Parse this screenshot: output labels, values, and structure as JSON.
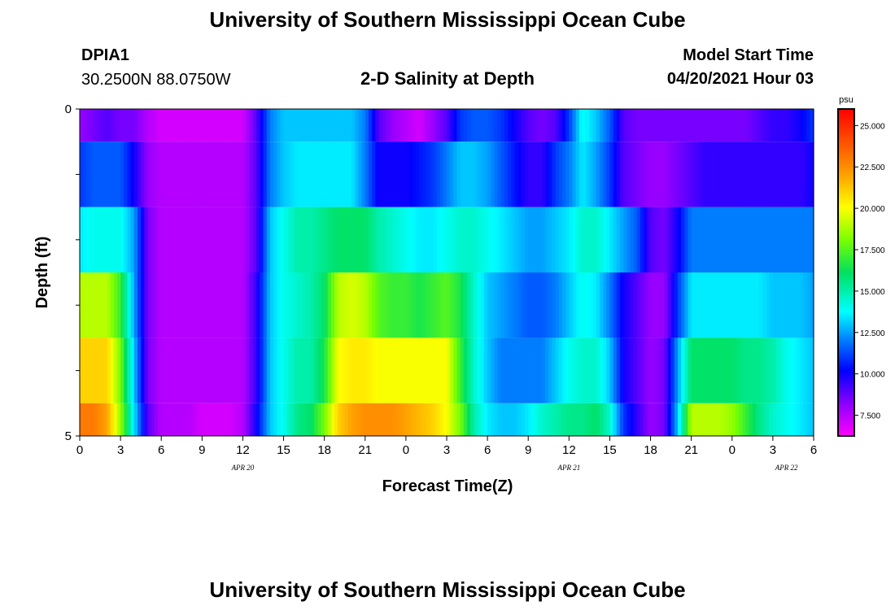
{
  "header": {
    "title": "University of Southern Mississippi Ocean Cube",
    "station": "DPIA1",
    "coords": "30.2500N  88.0750W",
    "subtitle": "2-D Salinity at Depth",
    "model_label": "Model Start Time",
    "model_time": "04/20/2021 Hour 03"
  },
  "footer": {
    "title": "University of Southern Mississippi Ocean Cube"
  },
  "chart_data": {
    "type": "heatmap",
    "title": "2-D Salinity at Depth",
    "xlabel": "Forecast Time(Z)",
    "ylabel": "Depth (ft)",
    "ylim": [
      0,
      5
    ],
    "y_ticks": [
      "0",
      "5"
    ],
    "x_start_hour": 0,
    "x_end_hour": 54,
    "x_tick_labels": [
      "0",
      "3",
      "6",
      "9",
      "12",
      "15",
      "18",
      "21",
      "0",
      "3",
      "6",
      "9",
      "12",
      "15",
      "18",
      "21",
      "0",
      "3",
      "6"
    ],
    "date_labels": [
      {
        "text": "APR 20",
        "hour": 12
      },
      {
        "text": "APR 21",
        "hour": 36
      },
      {
        "text": "APR 22",
        "hour": 52
      }
    ],
    "colorbar": {
      "unit": "psu",
      "min": 6.25,
      "max": 26.0,
      "ticks": [
        "25.000",
        "22.500",
        "20.000",
        "17.500",
        "15.000",
        "12.500",
        "10.000",
        "7.500"
      ],
      "tick_values": [
        25,
        22.5,
        20,
        17.5,
        15,
        12.5,
        10,
        7.5
      ]
    },
    "depth_bins": [
      "0-0.5",
      "0.5-1.5",
      "1.5-2.5",
      "2.5-3.5",
      "3.5-4.5",
      "4.5-5"
    ],
    "rows": [
      [
        [
          0,
          8
        ],
        [
          1,
          8.5
        ],
        [
          2,
          9
        ],
        [
          3,
          8.5
        ],
        [
          4,
          8.5
        ],
        [
          5,
          7.5
        ],
        [
          6,
          7
        ],
        [
          7,
          7
        ],
        [
          8,
          7
        ],
        [
          9,
          7
        ],
        [
          10,
          7
        ],
        [
          11,
          7
        ],
        [
          12,
          7
        ],
        [
          13,
          9
        ],
        [
          14,
          12
        ],
        [
          15,
          13
        ],
        [
          16,
          13
        ],
        [
          17,
          13
        ],
        [
          18,
          13
        ],
        [
          19,
          13
        ],
        [
          20,
          13
        ],
        [
          21,
          12
        ],
        [
          22,
          9
        ],
        [
          23,
          8
        ],
        [
          24,
          7.5
        ],
        [
          25,
          7
        ],
        [
          26,
          8
        ],
        [
          27,
          9
        ],
        [
          28,
          11
        ],
        [
          29,
          11.5
        ],
        [
          30,
          11.5
        ],
        [
          31,
          11
        ],
        [
          32,
          10
        ],
        [
          33,
          9
        ],
        [
          34,
          8.5
        ],
        [
          35,
          9
        ],
        [
          36,
          11
        ],
        [
          37,
          14
        ],
        [
          38,
          13
        ],
        [
          39,
          11.5
        ],
        [
          40,
          9
        ],
        [
          41,
          8.5
        ],
        [
          42,
          8.5
        ],
        [
          43,
          8.5
        ],
        [
          44,
          8.5
        ],
        [
          45,
          8.5
        ],
        [
          46,
          8.5
        ],
        [
          47,
          8.5
        ],
        [
          48,
          8.5
        ],
        [
          49,
          8.5
        ],
        [
          50,
          9
        ],
        [
          51,
          9.5
        ],
        [
          52,
          9.5
        ],
        [
          53,
          10
        ],
        [
          54,
          11
        ]
      ],
      [
        [
          0,
          11
        ],
        [
          1,
          11.5
        ],
        [
          2,
          11.5
        ],
        [
          3,
          11.5
        ],
        [
          4,
          10
        ],
        [
          5,
          8
        ],
        [
          6,
          7.5
        ],
        [
          7,
          7.5
        ],
        [
          8,
          7.5
        ],
        [
          9,
          7.5
        ],
        [
          10,
          7.5
        ],
        [
          11,
          7.5
        ],
        [
          12,
          7.5
        ],
        [
          13,
          9
        ],
        [
          14,
          12
        ],
        [
          15,
          13
        ],
        [
          16,
          13.5
        ],
        [
          17,
          13.5
        ],
        [
          18,
          13.5
        ],
        [
          19,
          13.5
        ],
        [
          20,
          13.5
        ],
        [
          21,
          12
        ],
        [
          22,
          10
        ],
        [
          23,
          10
        ],
        [
          24,
          10
        ],
        [
          25,
          10.5
        ],
        [
          26,
          11
        ],
        [
          27,
          12
        ],
        [
          28,
          13
        ],
        [
          29,
          13
        ],
        [
          30,
          12.5
        ],
        [
          31,
          11.5
        ],
        [
          32,
          10.5
        ],
        [
          33,
          9.5
        ],
        [
          34,
          9.5
        ],
        [
          35,
          11
        ],
        [
          36,
          12
        ],
        [
          37,
          13.5
        ],
        [
          38,
          12.5
        ],
        [
          39,
          11
        ],
        [
          40,
          9
        ],
        [
          41,
          8.5
        ],
        [
          42,
          8
        ],
        [
          43,
          8
        ],
        [
          44,
          8.5
        ],
        [
          45,
          9
        ],
        [
          46,
          9.5
        ],
        [
          47,
          9.5
        ],
        [
          48,
          9.5
        ],
        [
          49,
          9.5
        ],
        [
          50,
          9.5
        ],
        [
          51,
          9.5
        ],
        [
          52,
          9.5
        ],
        [
          53,
          9.5
        ],
        [
          54,
          10
        ]
      ],
      [
        [
          0,
          13.5
        ],
        [
          1,
          14
        ],
        [
          2,
          14
        ],
        [
          3,
          14
        ],
        [
          4,
          12.5
        ],
        [
          5,
          8.5
        ],
        [
          6,
          7.5
        ],
        [
          7,
          7.5
        ],
        [
          8,
          7.5
        ],
        [
          9,
          7.5
        ],
        [
          10,
          7.5
        ],
        [
          11,
          7.5
        ],
        [
          12,
          7.5
        ],
        [
          13,
          9
        ],
        [
          14,
          13
        ],
        [
          15,
          14
        ],
        [
          16,
          15
        ],
        [
          17,
          15
        ],
        [
          18,
          15.5
        ],
        [
          19,
          16
        ],
        [
          20,
          16
        ],
        [
          21,
          16
        ],
        [
          22,
          15
        ],
        [
          23,
          14.5
        ],
        [
          24,
          14
        ],
        [
          25,
          13.5
        ],
        [
          26,
          13.5
        ],
        [
          27,
          14
        ],
        [
          28,
          14.5
        ],
        [
          29,
          14.5
        ],
        [
          30,
          14
        ],
        [
          31,
          13.5
        ],
        [
          32,
          13
        ],
        [
          33,
          12.5
        ],
        [
          34,
          12.5
        ],
        [
          35,
          13
        ],
        [
          36,
          13.5
        ],
        [
          37,
          14.5
        ],
        [
          38,
          14.5
        ],
        [
          39,
          13.5
        ],
        [
          40,
          12.5
        ],
        [
          41,
          11.5
        ],
        [
          42,
          9
        ],
        [
          43,
          8.5
        ],
        [
          44,
          10
        ],
        [
          45,
          12
        ],
        [
          46,
          12
        ],
        [
          47,
          12
        ],
        [
          48,
          12
        ],
        [
          49,
          12
        ],
        [
          50,
          12
        ],
        [
          51,
          12
        ],
        [
          52,
          12
        ],
        [
          53,
          12
        ],
        [
          54,
          12
        ]
      ],
      [
        [
          0,
          19
        ],
        [
          1,
          19
        ],
        [
          2,
          19
        ],
        [
          3,
          17
        ],
        [
          4,
          12.5
        ],
        [
          5,
          8.5
        ],
        [
          6,
          7.5
        ],
        [
          7,
          7.5
        ],
        [
          8,
          7.5
        ],
        [
          9,
          7.5
        ],
        [
          10,
          7.5
        ],
        [
          11,
          7.5
        ],
        [
          12,
          7.5
        ],
        [
          13,
          9.5
        ],
        [
          14,
          13
        ],
        [
          15,
          14
        ],
        [
          16,
          14.5
        ],
        [
          17,
          15
        ],
        [
          18,
          16
        ],
        [
          19,
          19
        ],
        [
          20,
          19.5
        ],
        [
          21,
          19
        ],
        [
          22,
          17.5
        ],
        [
          23,
          17
        ],
        [
          24,
          17
        ],
        [
          25,
          16.5
        ],
        [
          26,
          17
        ],
        [
          27,
          17.5
        ],
        [
          28,
          16.5
        ],
        [
          29,
          14.5
        ],
        [
          30,
          13
        ],
        [
          31,
          12.5
        ],
        [
          32,
          12
        ],
        [
          33,
          11.5
        ],
        [
          34,
          11.5
        ],
        [
          35,
          12
        ],
        [
          36,
          13
        ],
        [
          37,
          14
        ],
        [
          38,
          13.5
        ],
        [
          39,
          12
        ],
        [
          40,
          10
        ],
        [
          41,
          9
        ],
        [
          42,
          8
        ],
        [
          43,
          8
        ],
        [
          44,
          11
        ],
        [
          45,
          13.5
        ],
        [
          46,
          13.5
        ],
        [
          47,
          13.5
        ],
        [
          48,
          13.5
        ],
        [
          49,
          13.5
        ],
        [
          50,
          13.5
        ],
        [
          51,
          13
        ],
        [
          52,
          13
        ],
        [
          53,
          13
        ],
        [
          54,
          12.5
        ]
      ],
      [
        [
          0,
          21
        ],
        [
          1,
          21
        ],
        [
          2,
          21
        ],
        [
          3,
          18
        ],
        [
          4,
          13
        ],
        [
          5,
          8.5
        ],
        [
          6,
          7.5
        ],
        [
          7,
          7.5
        ],
        [
          8,
          7.5
        ],
        [
          9,
          7.5
        ],
        [
          10,
          7.5
        ],
        [
          11,
          7.5
        ],
        [
          12,
          7.5
        ],
        [
          13,
          9.5
        ],
        [
          14,
          13
        ],
        [
          15,
          14
        ],
        [
          16,
          15
        ],
        [
          17,
          15
        ],
        [
          18,
          16.5
        ],
        [
          19,
          20
        ],
        [
          20,
          20.5
        ],
        [
          21,
          20.5
        ],
        [
          22,
          20
        ],
        [
          23,
          20
        ],
        [
          24,
          20
        ],
        [
          25,
          20
        ],
        [
          26,
          20
        ],
        [
          27,
          20
        ],
        [
          28,
          17
        ],
        [
          29,
          14.5
        ],
        [
          30,
          13
        ],
        [
          31,
          12
        ],
        [
          32,
          12
        ],
        [
          33,
          12
        ],
        [
          34,
          12
        ],
        [
          35,
          13
        ],
        [
          36,
          14
        ],
        [
          37,
          14.5
        ],
        [
          38,
          14.5
        ],
        [
          39,
          13
        ],
        [
          40,
          10
        ],
        [
          41,
          9
        ],
        [
          42,
          8
        ],
        [
          43,
          8.5
        ],
        [
          44,
          12.5
        ],
        [
          45,
          16
        ],
        [
          46,
          16
        ],
        [
          47,
          16
        ],
        [
          48,
          16
        ],
        [
          49,
          15.5
        ],
        [
          50,
          15.5
        ],
        [
          51,
          15
        ],
        [
          52,
          14
        ],
        [
          53,
          13.5
        ],
        [
          54,
          13
        ]
      ],
      [
        [
          0,
          23
        ],
        [
          1,
          23
        ],
        [
          2,
          22
        ],
        [
          3,
          18.5
        ],
        [
          4,
          13.5
        ],
        [
          5,
          9
        ],
        [
          6,
          7.5
        ],
        [
          7,
          7.5
        ],
        [
          8,
          7.5
        ],
        [
          9,
          7
        ],
        [
          10,
          7
        ],
        [
          11,
          7
        ],
        [
          12,
          7.5
        ],
        [
          13,
          10
        ],
        [
          14,
          13
        ],
        [
          15,
          14
        ],
        [
          16,
          15.5
        ],
        [
          17,
          16
        ],
        [
          18,
          18
        ],
        [
          19,
          21
        ],
        [
          20,
          22
        ],
        [
          21,
          22.5
        ],
        [
          22,
          22.5
        ],
        [
          23,
          22.5
        ],
        [
          24,
          22
        ],
        [
          25,
          21.5
        ],
        [
          26,
          21
        ],
        [
          27,
          20
        ],
        [
          28,
          18
        ],
        [
          29,
          15
        ],
        [
          30,
          13.5
        ],
        [
          31,
          13
        ],
        [
          32,
          13
        ],
        [
          33,
          13.5
        ],
        [
          34,
          14.5
        ],
        [
          35,
          15
        ],
        [
          36,
          15.5
        ],
        [
          37,
          15.5
        ],
        [
          38,
          16
        ],
        [
          39,
          14.5
        ],
        [
          40,
          11
        ],
        [
          41,
          9.5
        ],
        [
          42,
          8
        ],
        [
          43,
          8.5
        ],
        [
          44,
          13
        ],
        [
          45,
          19
        ],
        [
          46,
          19
        ],
        [
          47,
          19
        ],
        [
          48,
          18.5
        ],
        [
          49,
          17
        ],
        [
          50,
          15.5
        ],
        [
          51,
          14.5
        ],
        [
          52,
          14
        ],
        [
          53,
          13.5
        ],
        [
          54,
          13
        ]
      ]
    ]
  }
}
